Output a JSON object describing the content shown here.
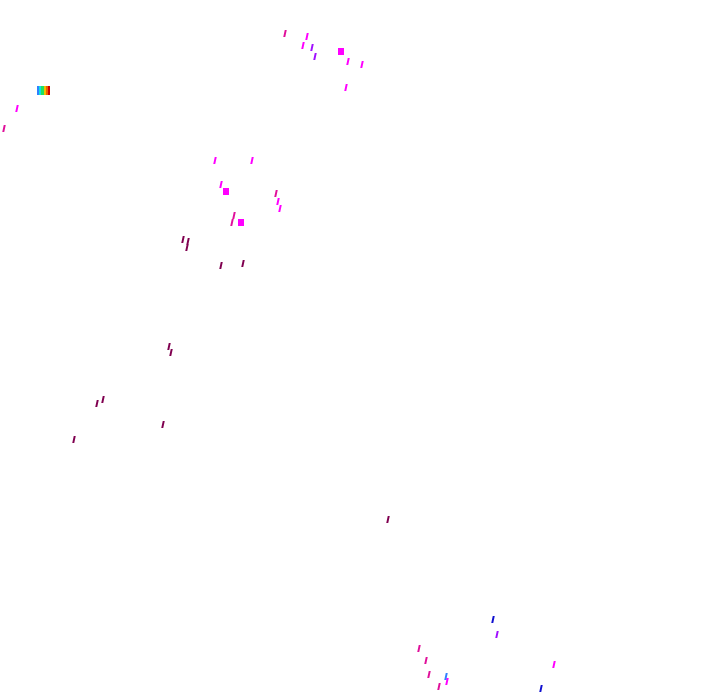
{
  "colors": {
    "magenta": "#ff00ff",
    "pink": "#e0109a",
    "violet": "#a010ff",
    "maroon": "#800050",
    "blue": "#1010d0",
    "lightblue": "#3080ff"
  },
  "rainbow_colors": [
    "#3080ff",
    "#10e0e0",
    "#20e060",
    "#f0c000",
    "#f06000",
    "#d00000"
  ]
}
